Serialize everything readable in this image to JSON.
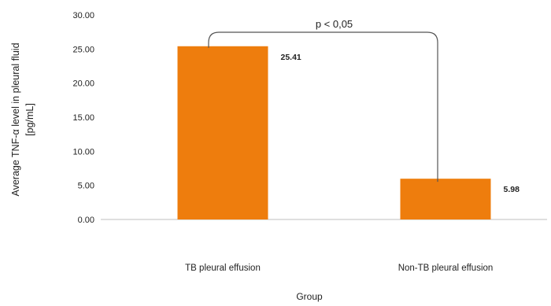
{
  "chart_data": {
    "type": "bar",
    "categories": [
      "TB pleural effusion",
      "Non-TB pleural effusion"
    ],
    "values": [
      25.41,
      5.98
    ],
    "value_labels": [
      "25.41",
      "5.98"
    ],
    "y_ticks": [
      "0.00",
      "5.00",
      "10.00",
      "15.00",
      "20.00",
      "25.00",
      "30.00"
    ],
    "ylim": [
      0,
      30
    ],
    "ylabel_line1": "Average TNF-α level in pleural fluid",
    "ylabel_line2": "[pg/mL]",
    "xlabel": "Group",
    "annotation": "p < 0,05",
    "bar_color": "#ee7d0d",
    "grid": false,
    "legend": "none"
  }
}
